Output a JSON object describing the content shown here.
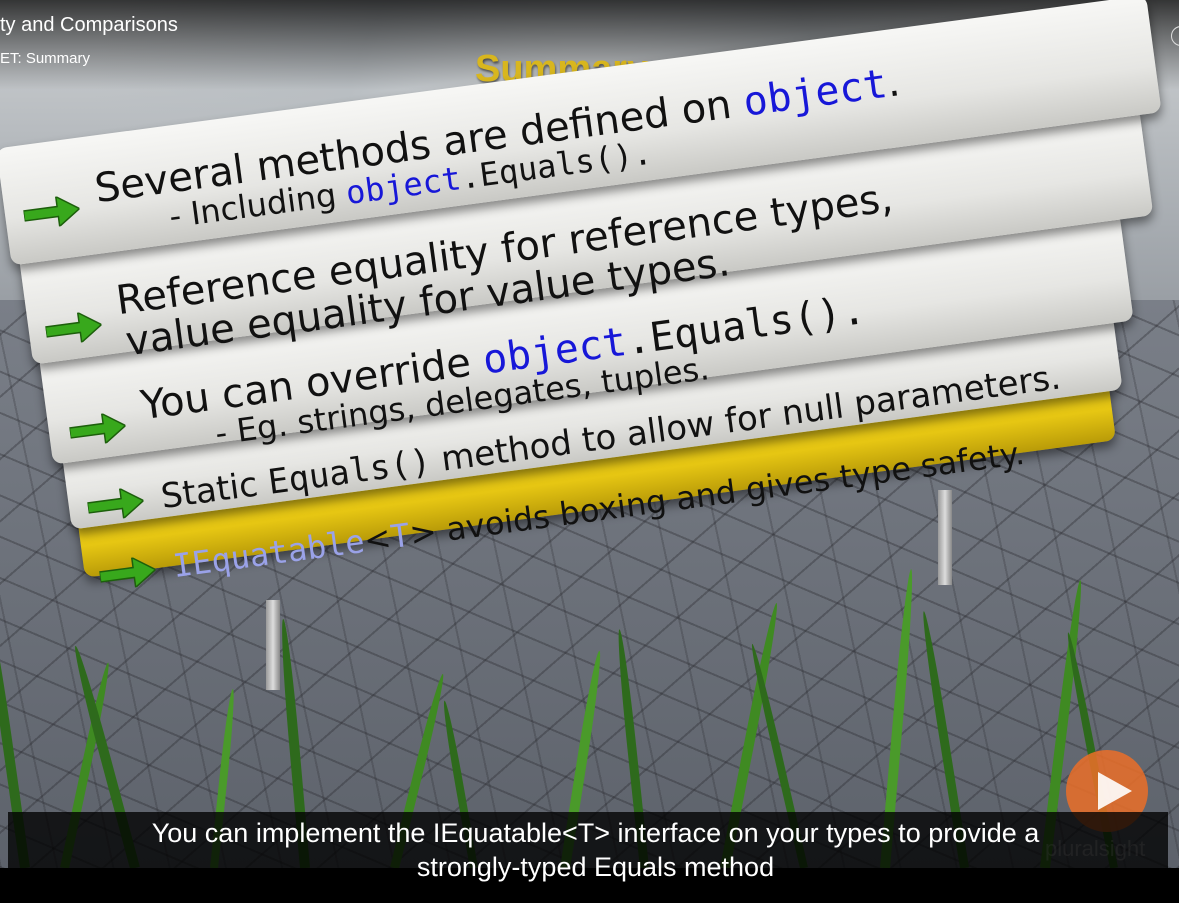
{
  "player": {
    "course_title": "ty and Comparisons",
    "module_title": "ET: Summary",
    "watermark": "pluralsight"
  },
  "slide": {
    "heading": "Summary",
    "items": [
      {
        "parts": [
          "Several methods are defined on ",
          "object",
          "."
        ],
        "sub": [
          "- Including ",
          "object",
          ".Equals()."
        ]
      },
      {
        "line1": "Reference equality for reference types,",
        "line2": "value equality for value types."
      },
      {
        "parts": [
          "You can override ",
          "object",
          ".Equals()."
        ],
        "sub": "- Eg. strings, delegates, tuples."
      },
      {
        "pre": "Static ",
        "code": "Equals()",
        "post": " method to allow for null parameters."
      },
      {
        "code": "IEquatable",
        "lt": "<",
        "t": "T",
        "gt": ">",
        "post": " avoids boxing and gives type safety."
      }
    ]
  },
  "caption": {
    "line1": "You can implement the IEquatable<T> interface on your types to provide a",
    "line2": "strongly-typed Equals method"
  },
  "colors": {
    "keyword": "#1717d8",
    "highlight_board": "#e6c613",
    "arrow": "#38a81c",
    "play_button": "#eb6e28"
  },
  "icons": [
    "green-arrow-icon",
    "play-icon"
  ]
}
